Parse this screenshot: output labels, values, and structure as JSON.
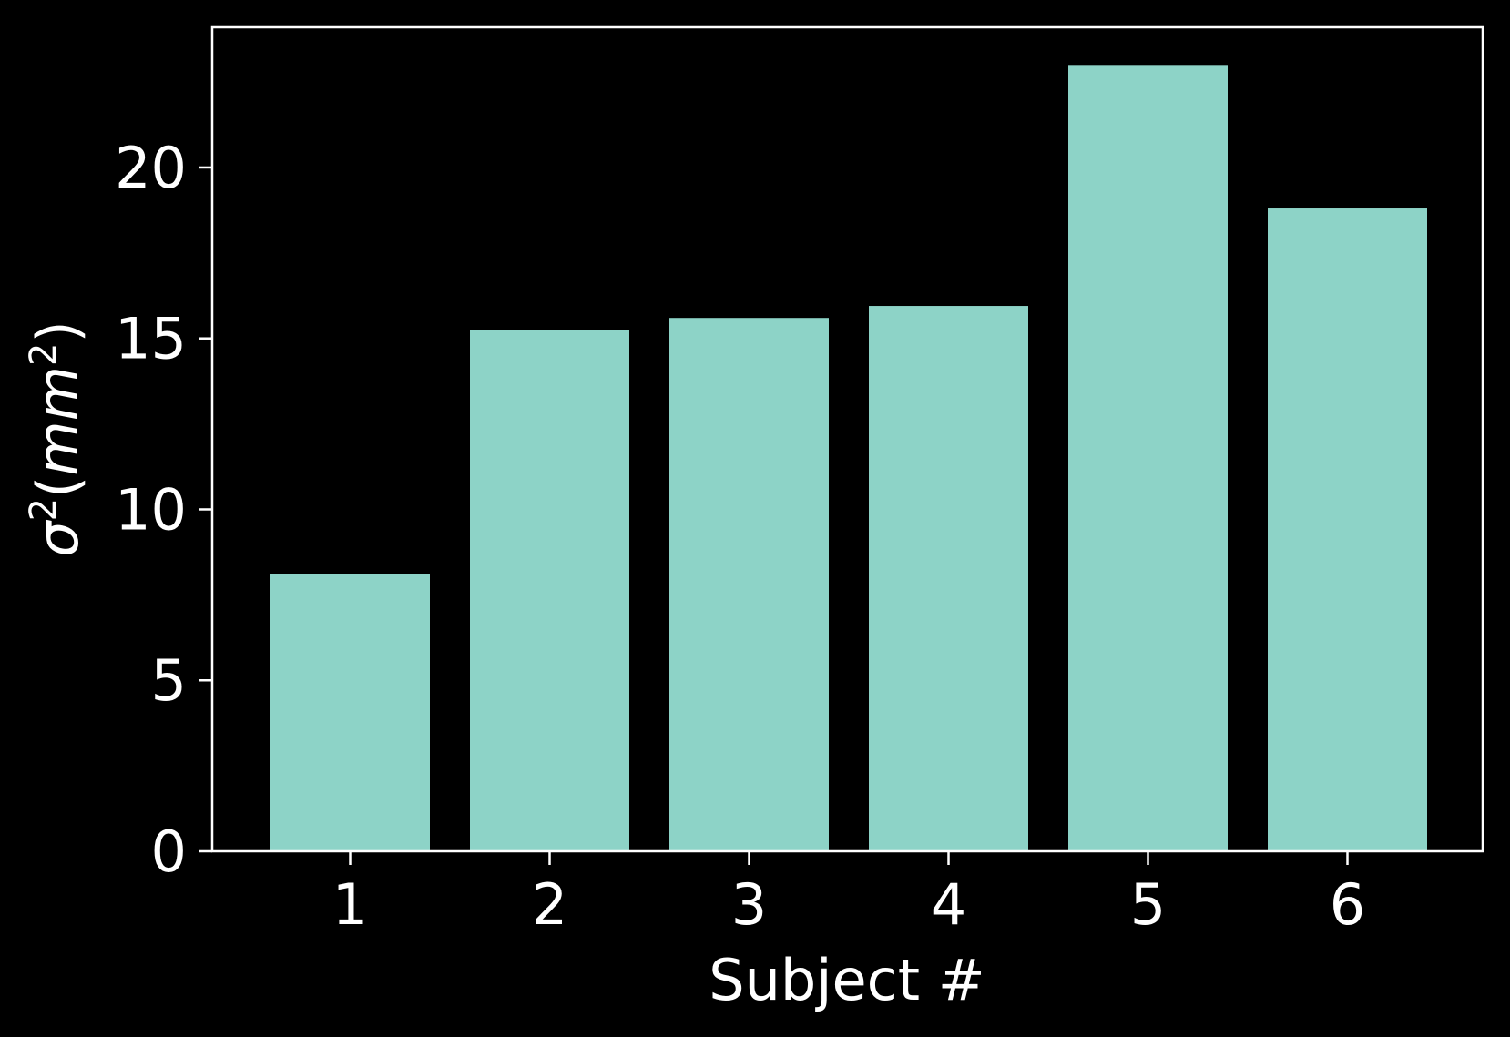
{
  "chart_data": {
    "type": "bar",
    "categories": [
      "1",
      "2",
      "3",
      "4",
      "5",
      "6"
    ],
    "values": [
      8.1,
      15.25,
      15.6,
      15.95,
      23.0,
      18.8
    ],
    "xlabel": "Subject #",
    "ylabel": {
      "symbol": "σ",
      "exp": "2",
      "open": "(",
      "unit": "mm",
      "unit_exp": "2",
      "close": ")"
    },
    "ylim": [
      0,
      24.1
    ],
    "yticks": [
      "0",
      "5",
      "10",
      "15",
      "20"
    ],
    "grid": false,
    "colors": {
      "background": "#000000",
      "bar": "#8dd3c7",
      "axes": "#ffffff",
      "text": "#ffffff"
    }
  }
}
